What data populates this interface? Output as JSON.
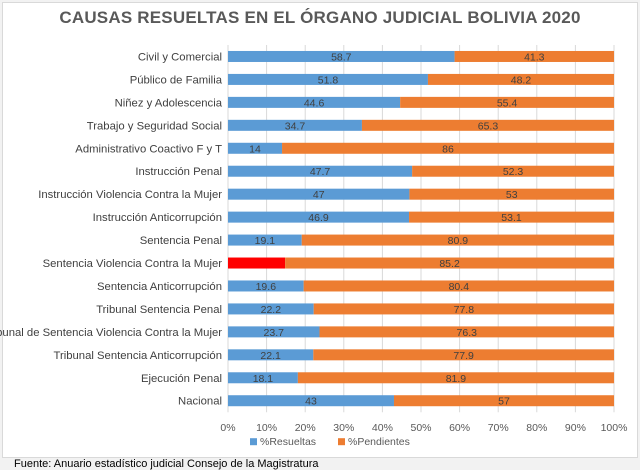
{
  "chart_data": {
    "type": "bar",
    "orientation": "horizontal",
    "stacked": "percent",
    "title": "CAUSAS RESUELTAS EN EL ÓRGANO JUDICIAL BOLIVIA 2020",
    "categories": [
      "Civil y Comercial",
      "Público de Familia",
      "Niñez y Adolescencia",
      "Trabajo y Seguridad Social",
      "Administrativo Coactivo F y T",
      "Instrucción Penal",
      "Instrucción Violencia Contra la Mujer",
      "Instrucción Anticorrupción",
      "Sentencia Penal",
      "Sentencia Violencia Contra la Mujer",
      "Sentencia Anticorrupción",
      "Tribunal Sentencia Penal",
      "Tribunal de Sentencia Violencia Contra la Mujer",
      "Tribunal Sentencia Anticorrupción",
      "Ejecución Penal",
      "Nacional"
    ],
    "series": [
      {
        "name": "%Resueltas",
        "color": "#5b9bd5",
        "values": [
          58.7,
          51.8,
          44.6,
          34.7,
          14,
          47.7,
          47,
          46.9,
          19.1,
          14.8,
          19.6,
          22.2,
          23.7,
          22.1,
          18.1,
          43
        ],
        "labels": [
          "58.7",
          "51.8",
          "44.6",
          "34.7",
          "14",
          "47.7",
          "47",
          "46.9",
          "19.1",
          "",
          "19.6",
          "22.2",
          "23.7",
          "22.1",
          "18.1",
          "43"
        ]
      },
      {
        "name": "%Pendientes",
        "color": "#ed7d31",
        "values": [
          41.3,
          48.2,
          55.4,
          65.3,
          86,
          52.3,
          53,
          53.1,
          80.9,
          85.2,
          80.4,
          77.8,
          76.3,
          77.9,
          81.9,
          57
        ],
        "labels": [
          "41.3",
          "48.2",
          "55.4",
          "65.3",
          "86",
          "52.3",
          "53",
          "53.1",
          "80.9",
          "85.2",
          "80.4",
          "77.8",
          "76.3",
          "77.9",
          "81.9",
          "57"
        ]
      }
    ],
    "highlight": {
      "category_index": 9,
      "series_index": 0,
      "color": "#ff0000"
    },
    "xlim": [
      0,
      100
    ],
    "x_ticks": [
      "0%",
      "10%",
      "20%",
      "30%",
      "40%",
      "50%",
      "60%",
      "70%",
      "80%",
      "90%",
      "100%"
    ],
    "grid": "vertical",
    "legend": "bottom-center"
  },
  "source": "Fuente: Anuario estadístico judicial Consejo de la Magistratura"
}
